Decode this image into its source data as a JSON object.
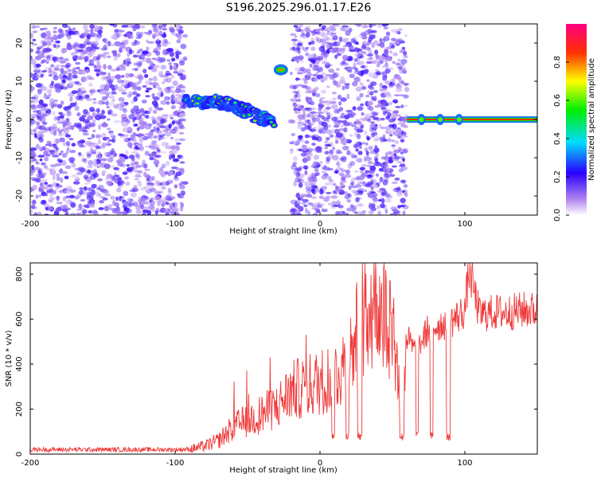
{
  "title": "S196.2025.296.01.17.E26",
  "chart_data": [
    {
      "type": "heatmap",
      "title": "S196.2025.296.01.17.E26",
      "xlabel": "Height of straight line (km)",
      "ylabel": "Frequency (Hz)",
      "xlim": [
        -200,
        150
      ],
      "ylim": [
        -25,
        25
      ],
      "x_ticks": [
        -200,
        -100,
        0,
        100
      ],
      "y_ticks": [
        -20,
        -10,
        0,
        10,
        20
      ],
      "colorbar": {
        "label": "Normalized spectral amplitude",
        "range": [
          0.0,
          1.0
        ],
        "ticks": [
          0.0,
          0.2,
          0.4,
          0.6,
          0.8
        ]
      },
      "features": [
        {
          "kind": "noise",
          "x_range": [
            -200,
            -93
          ],
          "y_range": [
            -25,
            25
          ],
          "level": 0.15
        },
        {
          "kind": "blank",
          "x_range": [
            -93,
            -20
          ],
          "y_range": [
            -25,
            25
          ]
        },
        {
          "kind": "track",
          "points": [
            [
              -93,
              5
            ],
            [
              -80,
              4.5
            ],
            [
              -70,
              4.5
            ],
            [
              -60,
              3.5
            ],
            [
              -50,
              2
            ],
            [
              -40,
              0.5
            ],
            [
              -32,
              -1.5
            ]
          ],
          "level": 0.4
        },
        {
          "kind": "blob",
          "x": -27,
          "y": 13,
          "level": 0.8
        },
        {
          "kind": "noise",
          "x_range": [
            -20,
            60
          ],
          "y_range": [
            -25,
            25
          ],
          "level": 0.15
        },
        {
          "kind": "blank",
          "x_range": [
            60,
            150
          ],
          "y_range": [
            -25,
            25
          ]
        },
        {
          "kind": "line",
          "x_range": [
            60,
            150
          ],
          "y": 0,
          "level": 0.85
        }
      ]
    },
    {
      "type": "line",
      "xlabel": "Height of straight line (km)",
      "ylabel": "SNR (10 * v/v)",
      "xlim": [
        -200,
        150
      ],
      "ylim": [
        0,
        850
      ],
      "x_ticks": [
        -200,
        -100,
        0,
        100
      ],
      "y_ticks": [
        0,
        200,
        400,
        600,
        800
      ],
      "color": "#ef3a3a",
      "series": [
        {
          "x": [
            -200,
            -150,
            -100,
            -90,
            -80,
            -70,
            -60,
            -50,
            -40,
            -30,
            -20,
            -10,
            0,
            10,
            20,
            25,
            30,
            40,
            50,
            55,
            60,
            65,
            70,
            75,
            80,
            85,
            90,
            95,
            100,
            103,
            110,
            120,
            130,
            140,
            150
          ],
          "y": [
            20,
            20,
            20,
            22,
            35,
            60,
            120,
            150,
            180,
            210,
            280,
            300,
            320,
            350,
            420,
            520,
            650,
            670,
            590,
            300,
            520,
            460,
            500,
            560,
            570,
            580,
            590,
            610,
            640,
            820,
            620,
            630,
            630,
            640,
            640
          ]
        }
      ]
    }
  ]
}
